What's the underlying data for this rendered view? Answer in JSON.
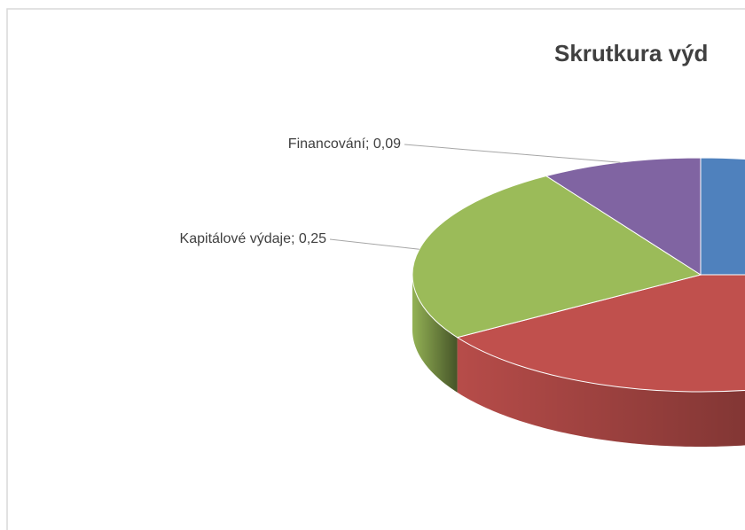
{
  "chart_data": {
    "type": "pie3d",
    "title": "Skrutkura výd",
    "categories": [
      null,
      null,
      "Kapitálové výdaje",
      "Financování"
    ],
    "values": [
      0.25,
      0.41,
      0.25,
      0.09
    ],
    "value_labels": [
      null,
      null,
      "0,25",
      "0,09"
    ],
    "label_separator": "; ",
    "colors": [
      "#4f81bd",
      "#c0504d",
      "#9bbb59",
      "#8064a2"
    ]
  }
}
